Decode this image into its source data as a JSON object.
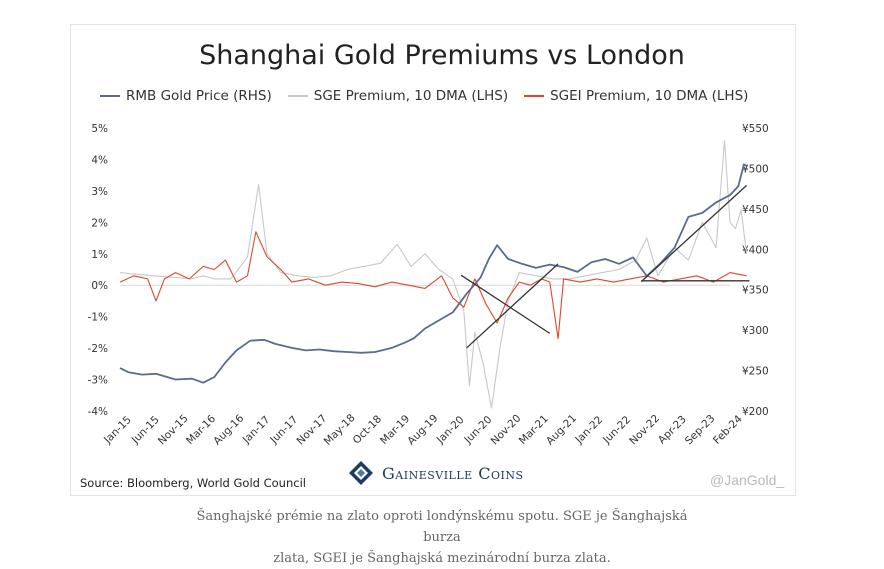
{
  "chart_data": {
    "type": "line",
    "title": "Shanghai Gold Premiums vs London",
    "x_ticks": [
      "Jan-15",
      "Jun-15",
      "Nov-15",
      "Mar-16",
      "Aug-16",
      "Jan-17",
      "Jun-17",
      "Nov-17",
      "May-18",
      "Oct-18",
      "Mar-19",
      "Aug-19",
      "Jan-20",
      "Jun-20",
      "Nov-20",
      "Mar-21",
      "Aug-21",
      "Jan-22",
      "Jun-22",
      "Nov-22",
      "Apr-23",
      "Sep-23",
      "Feb-24"
    ],
    "y_left": {
      "ticks": [
        "5%",
        "4%",
        "3%",
        "2%",
        "1%",
        "0%",
        "-1%",
        "-2%",
        "-3%",
        "-4%"
      ],
      "ylim": [
        -4,
        5
      ]
    },
    "y_right": {
      "ticks": [
        "¥550",
        "¥500",
        "¥450",
        "¥400",
        "¥350",
        "¥300",
        "¥250",
        "¥200"
      ],
      "ylim": [
        200,
        550
      ]
    },
    "legend_position": "top",
    "series": [
      {
        "name": "RMB Gold Price (RHS)",
        "axis": "right",
        "color": "#5b6b8f",
        "points": [
          [
            0,
            253
          ],
          [
            0.3,
            248
          ],
          [
            0.8,
            245
          ],
          [
            1.3,
            246
          ],
          [
            2,
            239
          ],
          [
            2.6,
            240
          ],
          [
            3,
            235
          ],
          [
            3.4,
            242
          ],
          [
            3.8,
            260
          ],
          [
            4.2,
            275
          ],
          [
            4.7,
            287
          ],
          [
            5.2,
            288
          ],
          [
            5.6,
            283
          ],
          [
            6.2,
            278
          ],
          [
            6.7,
            275
          ],
          [
            7.2,
            276
          ],
          [
            7.7,
            274
          ],
          [
            8.2,
            273
          ],
          [
            8.7,
            272
          ],
          [
            9.2,
            273
          ],
          [
            9.8,
            278
          ],
          [
            10.3,
            285
          ],
          [
            10.6,
            290
          ],
          [
            11,
            302
          ],
          [
            11.5,
            312
          ],
          [
            12,
            322
          ],
          [
            12.5,
            345
          ],
          [
            13,
            365
          ],
          [
            13.3,
            388
          ],
          [
            13.6,
            405
          ],
          [
            14,
            388
          ],
          [
            14.5,
            382
          ],
          [
            15,
            377
          ],
          [
            15.5,
            381
          ],
          [
            16,
            378
          ],
          [
            16.5,
            372
          ],
          [
            17,
            384
          ],
          [
            17.5,
            388
          ],
          [
            18,
            382
          ],
          [
            18.5,
            390
          ],
          [
            19,
            367
          ],
          [
            19.5,
            383
          ],
          [
            20,
            402
          ],
          [
            20.5,
            440
          ],
          [
            21,
            445
          ],
          [
            21.5,
            458
          ],
          [
            22,
            467
          ],
          [
            22.3,
            478
          ],
          [
            22.5,
            505
          ],
          [
            22.6,
            503
          ]
        ]
      },
      {
        "name": "SGE Premium, 10 DMA (LHS)",
        "axis": "left",
        "color": "#c8c8c8",
        "points": [
          [
            0,
            0.4
          ],
          [
            0.6,
            0.35
          ],
          [
            1.2,
            0.3
          ],
          [
            2,
            0.25
          ],
          [
            2.6,
            0.2
          ],
          [
            3,
            0.3
          ],
          [
            3.4,
            0.2
          ],
          [
            4,
            0.2
          ],
          [
            4.6,
            0.9
          ],
          [
            5,
            3.2
          ],
          [
            5.3,
            1.0
          ],
          [
            5.8,
            0.4
          ],
          [
            6.4,
            0.3
          ],
          [
            7,
            0.25
          ],
          [
            7.6,
            0.3
          ],
          [
            8.2,
            0.5
          ],
          [
            8.8,
            0.6
          ],
          [
            9.4,
            0.7
          ],
          [
            10,
            1.3
          ],
          [
            10.5,
            0.6
          ],
          [
            11,
            1.0
          ],
          [
            11.5,
            0.5
          ],
          [
            12,
            0.2
          ],
          [
            12.4,
            -0.8
          ],
          [
            12.6,
            -3.2
          ],
          [
            12.8,
            -1.5
          ],
          [
            13.1,
            -2.5
          ],
          [
            13.4,
            -3.9
          ],
          [
            13.7,
            -2.0
          ],
          [
            14,
            -0.5
          ],
          [
            14.4,
            0.4
          ],
          [
            15,
            0.3
          ],
          [
            15.6,
            0.2
          ],
          [
            16.2,
            0.2
          ],
          [
            16.8,
            0.3
          ],
          [
            17.4,
            0.4
          ],
          [
            18,
            0.5
          ],
          [
            18.6,
            0.8
          ],
          [
            19,
            1.5
          ],
          [
            19.4,
            0.3
          ],
          [
            20,
            1.2
          ],
          [
            20.5,
            0.8
          ],
          [
            21,
            2.0
          ],
          [
            21.5,
            1.2
          ],
          [
            21.8,
            4.6
          ],
          [
            22,
            2.0
          ],
          [
            22.2,
            1.8
          ],
          [
            22.4,
            2.4
          ],
          [
            22.6,
            1.0
          ]
        ]
      },
      {
        "name": "SGEI Premium, 10 DMA (LHS)",
        "axis": "left",
        "color": "#e0472a",
        "points": [
          [
            0,
            0.1
          ],
          [
            0.5,
            0.3
          ],
          [
            1,
            0.2
          ],
          [
            1.3,
            -0.5
          ],
          [
            1.6,
            0.2
          ],
          [
            2,
            0.4
          ],
          [
            2.5,
            0.2
          ],
          [
            3,
            0.6
          ],
          [
            3.4,
            0.5
          ],
          [
            3.8,
            0.8
          ],
          [
            4.2,
            0.1
          ],
          [
            4.6,
            0.3
          ],
          [
            4.9,
            1.7
          ],
          [
            5.3,
            0.9
          ],
          [
            5.8,
            0.5
          ],
          [
            6.2,
            0.1
          ],
          [
            6.8,
            0.2
          ],
          [
            7.4,
            0.0
          ],
          [
            8,
            0.1
          ],
          [
            8.6,
            0.05
          ],
          [
            9.2,
            -0.05
          ],
          [
            9.8,
            0.1
          ],
          [
            10.4,
            0.0
          ],
          [
            11,
            -0.1
          ],
          [
            11.6,
            0.3
          ],
          [
            12,
            -0.4
          ],
          [
            12.4,
            -0.7
          ],
          [
            12.8,
            0.2
          ],
          [
            13.2,
            -0.6
          ],
          [
            13.6,
            -1.2
          ],
          [
            14,
            -0.4
          ],
          [
            14.4,
            0.1
          ],
          [
            14.8,
            0.0
          ],
          [
            15.2,
            0.2
          ],
          [
            15.5,
            0.1
          ],
          [
            15.8,
            -1.7
          ],
          [
            16,
            0.2
          ],
          [
            16.6,
            0.1
          ],
          [
            17.2,
            0.2
          ],
          [
            17.8,
            0.1
          ],
          [
            18.4,
            0.2
          ],
          [
            19,
            0.3
          ],
          [
            19.6,
            0.1
          ],
          [
            20.2,
            0.2
          ],
          [
            20.8,
            0.3
          ],
          [
            21.4,
            0.1
          ],
          [
            22,
            0.4
          ],
          [
            22.6,
            0.3
          ]
        ]
      }
    ],
    "trendlines": [
      {
        "axis": "right",
        "from": [
          12.5,
          278
        ],
        "to": [
          15.8,
          382
        ],
        "color": "#333333"
      },
      {
        "axis": "right",
        "from": [
          12.3,
          368
        ],
        "to": [
          15.5,
          296
        ],
        "color": "#333333"
      },
      {
        "axis": "right",
        "from": [
          18.8,
          360
        ],
        "to": [
          22.6,
          479
        ],
        "color": "#333333"
      },
      {
        "axis": "right",
        "from": [
          18.8,
          361
        ],
        "to": [
          22.7,
          361
        ],
        "color": "#333333"
      }
    ]
  },
  "source": "Source: Bloomberg, World Gold Council",
  "brand": "Gainesville Coins",
  "watermark": "@JanGold_",
  "caption_line1": "Šanghajské prémie na zlato oproti londýnskému spotu. SGE je Šanghajská burza",
  "caption_line2": "zlata, SGEI je Šanghajská mezinárodní burza zlata."
}
